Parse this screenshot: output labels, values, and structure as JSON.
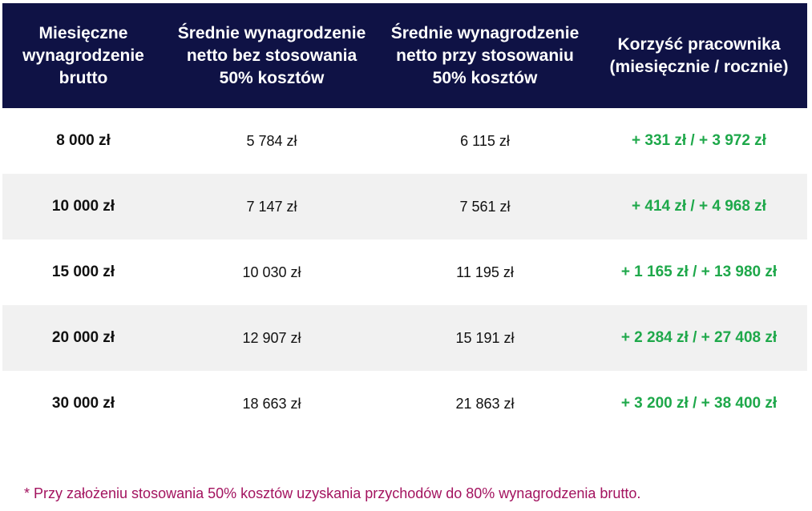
{
  "colors": {
    "header_bg": "#0f1245",
    "header_text": "#ffffff",
    "alt_row_bg": "#f1f1f1",
    "gain_text": "#1ea84a",
    "footnote_text": "#a3135f"
  },
  "table": {
    "headers": [
      "Miesięczne wynagrodzenie brutto",
      "Średnie wynagrodzenie netto bez stosowania 50% kosztów",
      "Średnie wynagrodzenie netto przy stosowaniu 50% kosztów",
      "Korzyść pracownika (miesięcznie / rocznie)"
    ],
    "rows": [
      [
        "8 000 zł",
        "5 784 zł",
        "6 115 zł",
        "+ 331 zł / + 3 972 zł"
      ],
      [
        "10 000 zł",
        "7 147 zł",
        "7 561 zł",
        "+ 414 zł / + 4 968 zł"
      ],
      [
        "15 000 zł",
        "10 030  zł",
        "11 195 zł",
        "+ 1 165 zł / + 13 980 zł"
      ],
      [
        "20 000 zł",
        "12 907 zł",
        "15 191 zł",
        "+ 2 284 zł / + 27 408 zł"
      ],
      [
        "30 000 zł",
        "18 663 zł",
        "21 863 zł",
        "+ 3 200 zł / + 38 400 zł"
      ]
    ]
  },
  "footnote": "* Przy założeniu stosowania 50% kosztów uzyskania przychodów do 80% wynagrodzenia brutto."
}
